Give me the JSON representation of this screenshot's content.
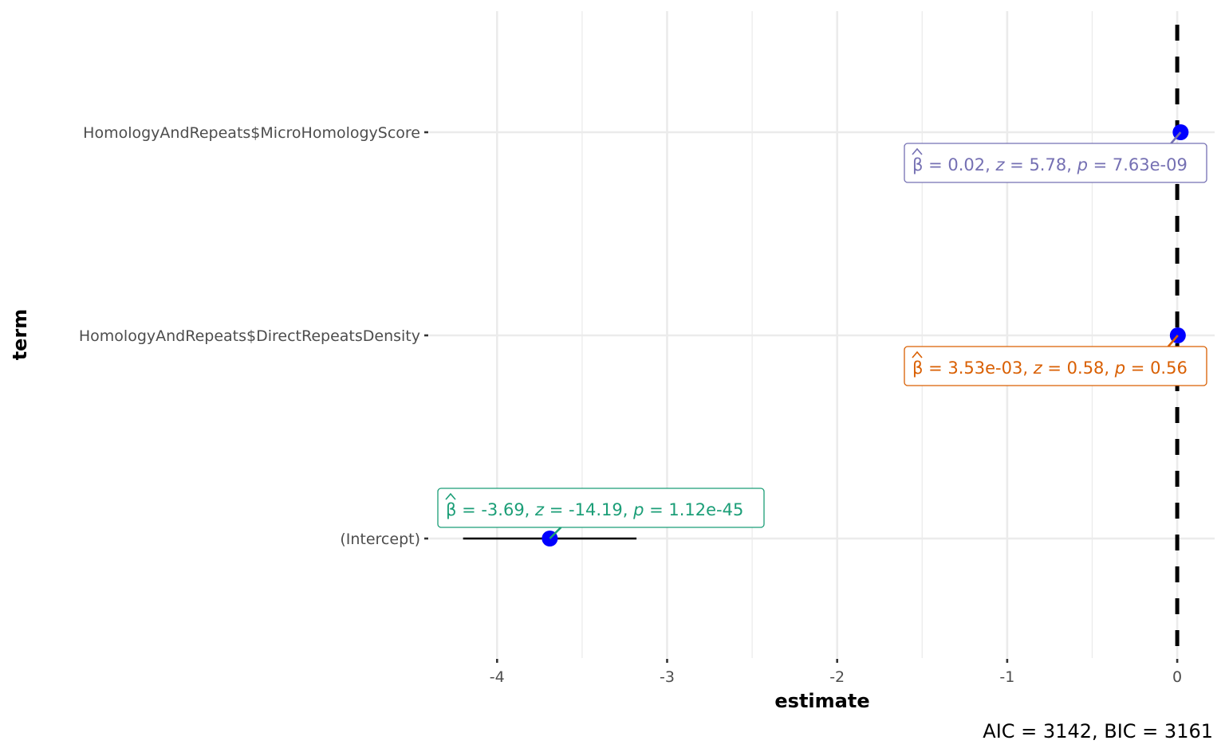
{
  "chart_data": {
    "type": "scatter",
    "subtype": "coefficient-plot",
    "xlabel": "estimate",
    "ylabel": "term",
    "xlim": [
      -4.4,
      0.22
    ],
    "x_ticks": [
      -4,
      -3,
      -2,
      -1,
      0
    ],
    "x_tick_labels": [
      "-4",
      "-3",
      "-2",
      "-1",
      "0"
    ],
    "reference_line_x": 0,
    "grid": true,
    "point_color": "#0000ff",
    "terms": [
      "(Intercept)",
      "HomologyAndRepeats$DirectRepeatsDensity",
      "HomologyAndRepeats$MicroHomologyScore"
    ],
    "points": [
      {
        "term": "(Intercept)",
        "estimate": -3.69,
        "conf_low": -4.2,
        "conf_high": -3.18,
        "beta": "-3.69",
        "z": "-14.19",
        "p": "1.12e-45",
        "color": "#1b9e77"
      },
      {
        "term": "HomologyAndRepeats$DirectRepeatsDensity",
        "estimate": 0.00353,
        "conf_low": -0.008,
        "conf_high": 0.015,
        "beta": "3.53e-03",
        "z": "0.58",
        "p": "0.56",
        "color": "#d95f02"
      },
      {
        "term": "HomologyAndRepeats$MicroHomologyScore",
        "estimate": 0.02,
        "conf_low": 0.013,
        "conf_high": 0.027,
        "beta": "0.02",
        "z": "5.78",
        "p": "7.63e-09",
        "color": "#7570b3"
      }
    ],
    "caption": "AIC = 3142, BIC = 3161"
  }
}
